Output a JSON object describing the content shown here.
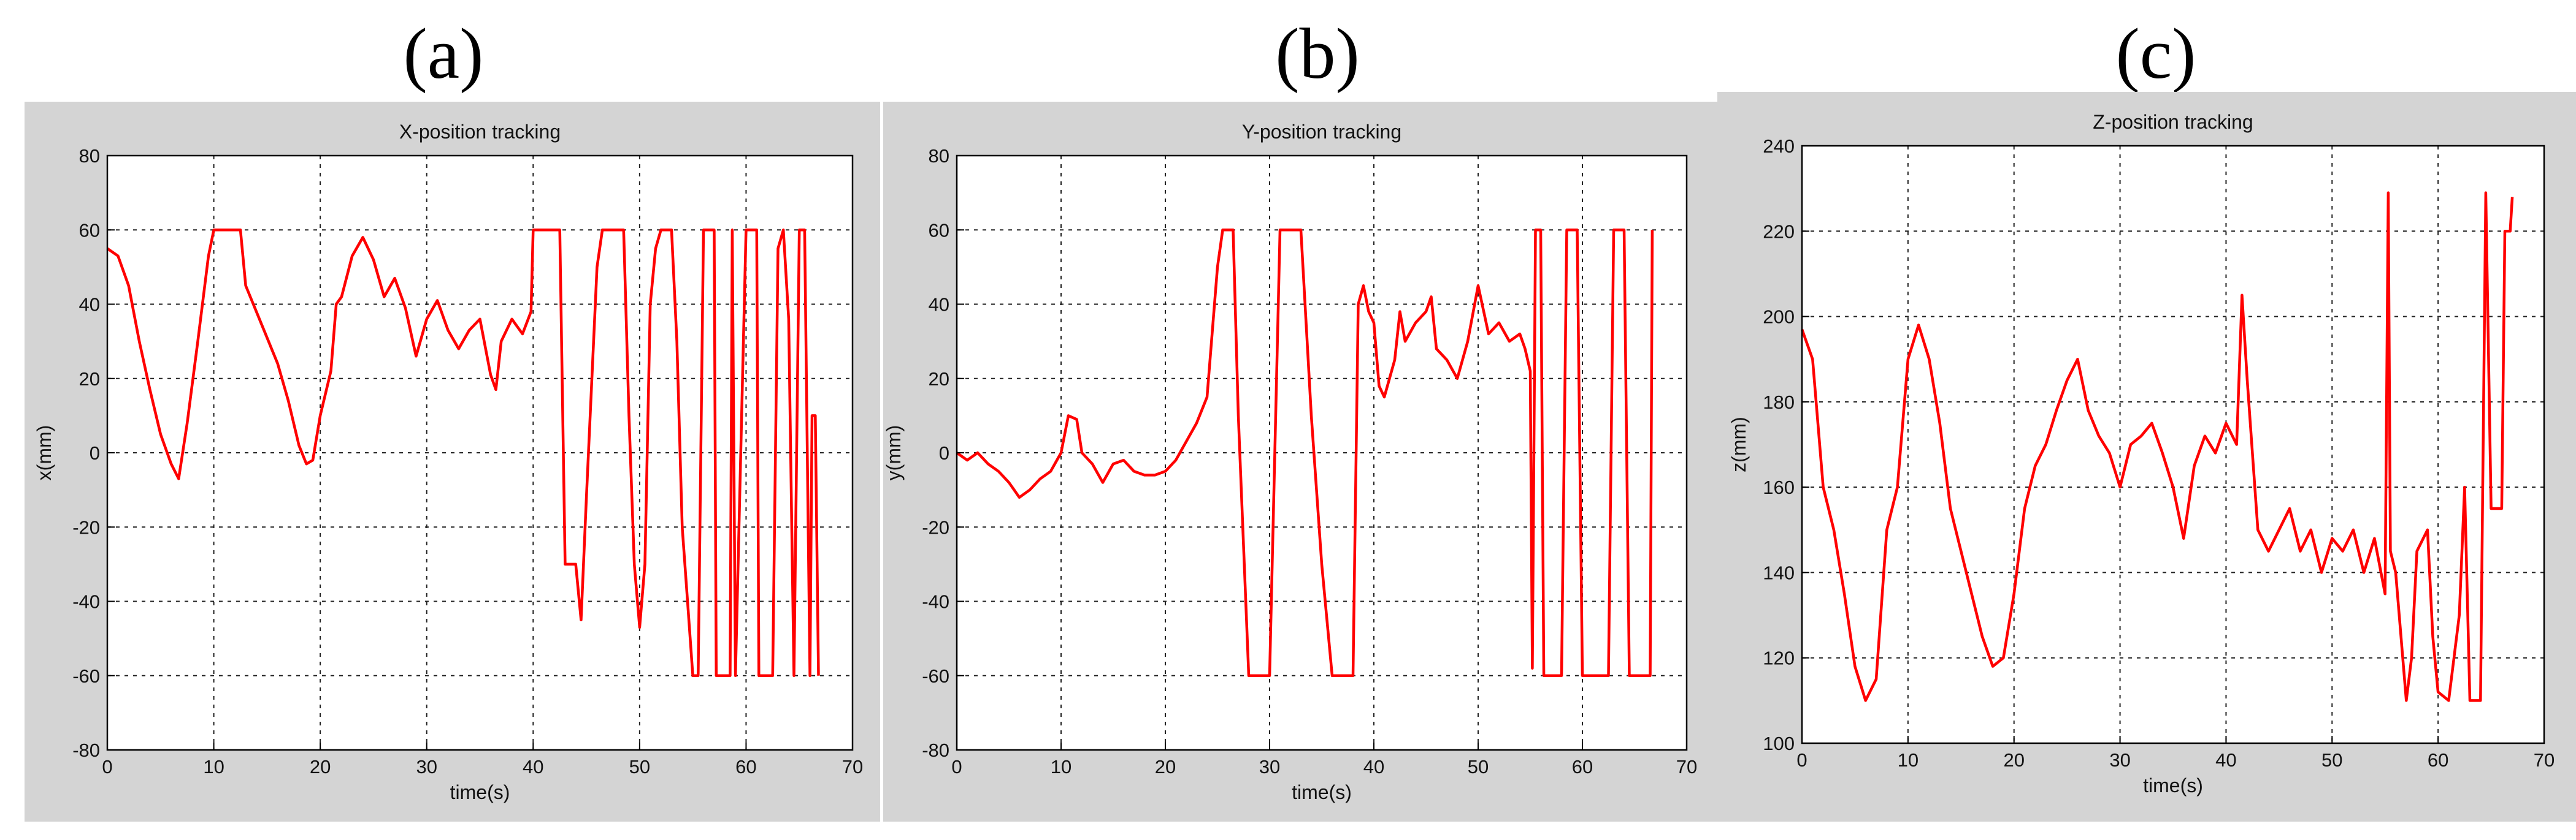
{
  "panels": [
    "(a)",
    "(b)",
    "(c)"
  ],
  "colors": {
    "line": "#ff0000",
    "figure_bg": "#d4d4d4",
    "axes_bg": "#ffffff",
    "grid": "#222222"
  },
  "chart_data": [
    {
      "type": "line",
      "title": "X-position tracking",
      "xlabel": "time(s)",
      "ylabel": "x(mm)",
      "xlim": [
        0,
        70
      ],
      "ylim": [
        -80,
        80
      ],
      "xticks": [
        0,
        10,
        20,
        30,
        40,
        50,
        60,
        70
      ],
      "yticks": [
        -80,
        -60,
        -40,
        -20,
        0,
        20,
        40,
        60,
        80
      ],
      "grid": true,
      "series": [
        {
          "values": [
            [
              0,
              55
            ],
            [
              1,
              53
            ],
            [
              2,
              45
            ],
            [
              3,
              30
            ],
            [
              4,
              17
            ],
            [
              5,
              5
            ],
            [
              6,
              -3
            ],
            [
              6.7,
              -7
            ],
            [
              7.5,
              8
            ],
            [
              8.5,
              30
            ],
            [
              9.5,
              53
            ],
            [
              10,
              60
            ],
            [
              12.5,
              60
            ],
            [
              13,
              45
            ],
            [
              14,
              38
            ],
            [
              15,
              31
            ],
            [
              16,
              24
            ],
            [
              17,
              14
            ],
            [
              18,
              2
            ],
            [
              18.7,
              -3
            ],
            [
              19.3,
              -2
            ],
            [
              20,
              10
            ],
            [
              21,
              22
            ],
            [
              21.5,
              40
            ],
            [
              22,
              42
            ],
            [
              23,
              53
            ],
            [
              24,
              58
            ],
            [
              25,
              52
            ],
            [
              26,
              42
            ],
            [
              27,
              47
            ],
            [
              28,
              39
            ],
            [
              29,
              26
            ],
            [
              30,
              36
            ],
            [
              31,
              41
            ],
            [
              32,
              33
            ],
            [
              33,
              28
            ],
            [
              34,
              33
            ],
            [
              35,
              36
            ],
            [
              36,
              21
            ],
            [
              36.5,
              17
            ],
            [
              37,
              30
            ],
            [
              38,
              36
            ],
            [
              39,
              32
            ],
            [
              39.8,
              38
            ],
            [
              40,
              60
            ],
            [
              42.5,
              60
            ],
            [
              43,
              -30
            ],
            [
              44,
              -30
            ],
            [
              44.5,
              -45
            ],
            [
              45,
              -12
            ],
            [
              46,
              50
            ],
            [
              46.5,
              60
            ],
            [
              48.5,
              60
            ],
            [
              49,
              10
            ],
            [
              49.5,
              -30
            ],
            [
              50,
              -47
            ],
            [
              50.5,
              -30
            ],
            [
              51,
              40
            ],
            [
              51.5,
              55
            ],
            [
              52,
              60
            ],
            [
              53,
              60
            ],
            [
              53.5,
              30
            ],
            [
              54,
              -20
            ],
            [
              54.5,
              -40
            ],
            [
              55,
              -60
            ],
            [
              55.5,
              -60
            ],
            [
              56,
              60
            ],
            [
              57,
              60
            ],
            [
              57.2,
              -60
            ],
            [
              58.5,
              -60
            ],
            [
              58.7,
              60
            ],
            [
              59,
              -60
            ],
            [
              60,
              60
            ],
            [
              61,
              60
            ],
            [
              61.2,
              -60
            ],
            [
              62.5,
              -60
            ],
            [
              63,
              55
            ],
            [
              63.5,
              60
            ],
            [
              64,
              36
            ],
            [
              64.5,
              -60
            ],
            [
              65,
              60
            ],
            [
              65.5,
              60
            ],
            [
              66,
              -60
            ],
            [
              66.2,
              10
            ],
            [
              66.5,
              10
            ],
            [
              66.8,
              -60
            ]
          ]
        }
      ]
    },
    {
      "type": "line",
      "title": "Y-position tracking",
      "xlabel": "time(s)",
      "ylabel": "y(mm)",
      "xlim": [
        0,
        70
      ],
      "ylim": [
        -80,
        80
      ],
      "xticks": [
        0,
        10,
        20,
        30,
        40,
        50,
        60,
        70
      ],
      "yticks": [
        -80,
        -60,
        -40,
        -20,
        0,
        20,
        40,
        60,
        80
      ],
      "grid": true,
      "series": [
        {
          "values": [
            [
              0,
              0
            ],
            [
              1,
              -2
            ],
            [
              2,
              0
            ],
            [
              3,
              -3
            ],
            [
              4,
              -5
            ],
            [
              5,
              -8
            ],
            [
              6,
              -12
            ],
            [
              7,
              -10
            ],
            [
              8,
              -7
            ],
            [
              9,
              -5
            ],
            [
              10,
              0
            ],
            [
              10.7,
              10
            ],
            [
              11.5,
              9
            ],
            [
              12,
              0
            ],
            [
              13,
              -3
            ],
            [
              14,
              -8
            ],
            [
              15,
              -3
            ],
            [
              16,
              -2
            ],
            [
              17,
              -5
            ],
            [
              18,
              -6
            ],
            [
              19,
              -6
            ],
            [
              20,
              -5
            ],
            [
              21,
              -2
            ],
            [
              22,
              3
            ],
            [
              23,
              8
            ],
            [
              24,
              15
            ],
            [
              25,
              50
            ],
            [
              25.5,
              60
            ],
            [
              26.5,
              60
            ],
            [
              27,
              10
            ],
            [
              28,
              -60
            ],
            [
              30,
              -60
            ],
            [
              31,
              60
            ],
            [
              33,
              60
            ],
            [
              34,
              10
            ],
            [
              35,
              -30
            ],
            [
              36,
              -60
            ],
            [
              38,
              -60
            ],
            [
              38.5,
              40
            ],
            [
              39,
              45
            ],
            [
              39.5,
              38
            ],
            [
              40,
              35
            ],
            [
              40.5,
              18
            ],
            [
              41,
              15
            ],
            [
              42,
              25
            ],
            [
              42.5,
              38
            ],
            [
              43,
              30
            ],
            [
              44,
              35
            ],
            [
              45,
              38
            ],
            [
              45.5,
              42
            ],
            [
              46,
              28
            ],
            [
              47,
              25
            ],
            [
              48,
              20
            ],
            [
              49,
              30
            ],
            [
              50,
              45
            ],
            [
              51,
              32
            ],
            [
              52,
              35
            ],
            [
              53,
              30
            ],
            [
              54,
              32
            ],
            [
              54.5,
              28
            ],
            [
              55,
              22
            ],
            [
              55.2,
              -58
            ],
            [
              55.5,
              60
            ],
            [
              56,
              60
            ],
            [
              56.3,
              -60
            ],
            [
              58,
              -60
            ],
            [
              58.5,
              60
            ],
            [
              59.5,
              60
            ],
            [
              60,
              -60
            ],
            [
              62.5,
              -60
            ],
            [
              63,
              60
            ],
            [
              64,
              60
            ],
            [
              64.5,
              -60
            ],
            [
              66.5,
              -60
            ],
            [
              66.7,
              60
            ]
          ]
        }
      ]
    },
    {
      "type": "line",
      "title": "Z-position tracking",
      "xlabel": "time(s)",
      "ylabel": "z(mm)",
      "xlim": [
        0,
        70
      ],
      "ylim": [
        100,
        240
      ],
      "xticks": [
        0,
        10,
        20,
        30,
        40,
        50,
        60,
        70
      ],
      "yticks": [
        100,
        120,
        140,
        160,
        180,
        200,
        220,
        240
      ],
      "grid": true,
      "series": [
        {
          "values": [
            [
              0,
              197
            ],
            [
              1,
              190
            ],
            [
              2,
              160
            ],
            [
              3,
              150
            ],
            [
              4,
              135
            ],
            [
              5,
              118
            ],
            [
              6,
              110
            ],
            [
              7,
              115
            ],
            [
              8,
              150
            ],
            [
              9,
              160
            ],
            [
              10,
              190
            ],
            [
              11,
              198
            ],
            [
              12,
              190
            ],
            [
              13,
              175
            ],
            [
              14,
              155
            ],
            [
              15,
              145
            ],
            [
              16,
              135
            ],
            [
              17,
              125
            ],
            [
              18,
              118
            ],
            [
              19,
              120
            ],
            [
              20,
              135
            ],
            [
              21,
              155
            ],
            [
              22,
              165
            ],
            [
              23,
              170
            ],
            [
              24,
              178
            ],
            [
              25,
              185
            ],
            [
              26,
              190
            ],
            [
              27,
              178
            ],
            [
              28,
              172
            ],
            [
              29,
              168
            ],
            [
              30,
              160
            ],
            [
              31,
              170
            ],
            [
              32,
              172
            ],
            [
              33,
              175
            ],
            [
              34,
              168
            ],
            [
              35,
              160
            ],
            [
              36,
              148
            ],
            [
              37,
              165
            ],
            [
              38,
              172
            ],
            [
              39,
              168
            ],
            [
              40,
              175
            ],
            [
              41,
              170
            ],
            [
              41.5,
              205
            ],
            [
              42,
              185
            ],
            [
              43,
              150
            ],
            [
              44,
              145
            ],
            [
              45,
              150
            ],
            [
              46,
              155
            ],
            [
              47,
              145
            ],
            [
              48,
              150
            ],
            [
              49,
              140
            ],
            [
              50,
              148
            ],
            [
              51,
              145
            ],
            [
              52,
              150
            ],
            [
              53,
              140
            ],
            [
              54,
              148
            ],
            [
              55,
              135
            ],
            [
              55.3,
              229
            ],
            [
              55.5,
              145
            ],
            [
              56,
              140
            ],
            [
              57,
              110
            ],
            [
              57.5,
              120
            ],
            [
              58,
              145
            ],
            [
              59,
              150
            ],
            [
              59.5,
              125
            ],
            [
              60,
              112
            ],
            [
              61,
              110
            ],
            [
              62,
              130
            ],
            [
              62.5,
              160
            ],
            [
              63,
              110
            ],
            [
              64,
              110
            ],
            [
              64.5,
              229
            ],
            [
              65,
              155
            ],
            [
              66,
              155
            ],
            [
              66.3,
              220
            ],
            [
              66.8,
              220
            ],
            [
              67,
              228
            ]
          ]
        }
      ]
    }
  ]
}
